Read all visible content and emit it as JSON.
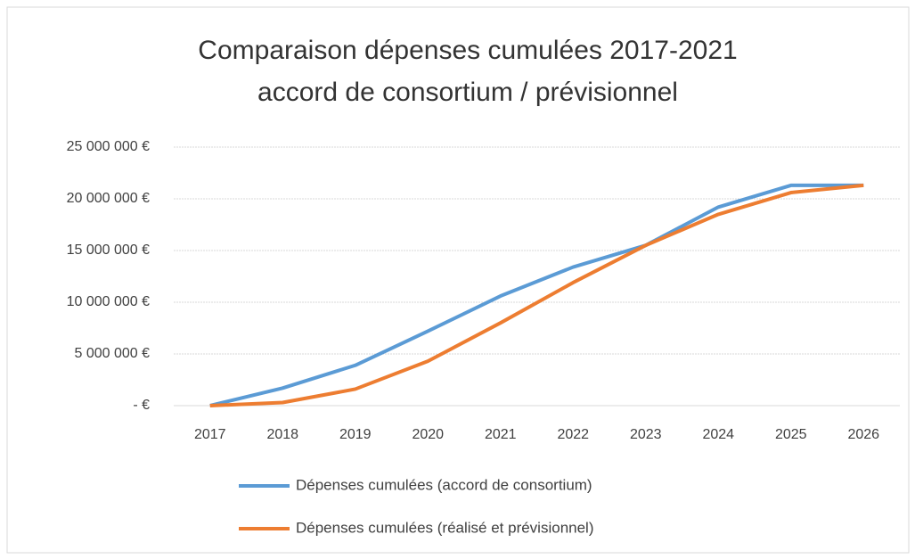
{
  "chart_data": {
    "type": "line",
    "title": [
      "Comparaison dépenses cumulées  2017-2021",
      "accord de consortium / prévisionnel"
    ],
    "categories": [
      "2017",
      "2018",
      "2019",
      "2020",
      "2021",
      "2022",
      "2023",
      "2024",
      "2025",
      "2026"
    ],
    "series": [
      {
        "name": "Dépenses cumulées (accord de consortium)",
        "color": "#5b9bd5",
        "values": [
          0,
          1700000,
          3900000,
          7200000,
          10600000,
          13400000,
          15500000,
          19200000,
          21300000,
          21300000
        ]
      },
      {
        "name": "Dépenses cumulées (réalisé et prévisionnel)",
        "color": "#ed7d31",
        "values": [
          0,
          300000,
          1600000,
          4300000,
          8000000,
          11900000,
          15500000,
          18500000,
          20600000,
          21300000
        ]
      }
    ],
    "ylim": [
      0,
      25000000
    ],
    "yticks": [
      {
        "value": 0,
        "label": "-  €"
      },
      {
        "value": 5000000,
        "label": "5 000 000 €"
      },
      {
        "value": 10000000,
        "label": "10 000 000 €"
      },
      {
        "value": 15000000,
        "label": "15 000 000 €"
      },
      {
        "value": 20000000,
        "label": "20 000 000 €"
      },
      {
        "value": 25000000,
        "label": "25 000 000 €"
      }
    ],
    "grid": true,
    "legend": "bottom"
  }
}
